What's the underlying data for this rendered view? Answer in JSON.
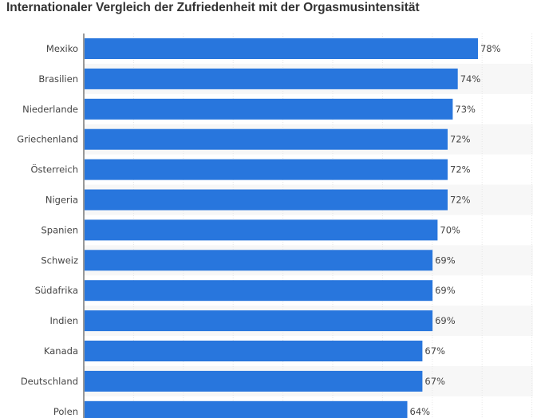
{
  "chart_data": {
    "type": "bar",
    "orientation": "horizontal",
    "title": "Internationaler Vergleich der Zufriedenheit mit der Orgasmusintensität",
    "categories": [
      "Mexiko",
      "Brasilien",
      "Niederlande",
      "Griechenland",
      "Österreich",
      "Nigeria",
      "Spanien",
      "Schweiz",
      "Südafrika",
      "Indien",
      "Kanada",
      "Deutschland",
      "Polen"
    ],
    "values": [
      78,
      74,
      73,
      72,
      72,
      72,
      70,
      69,
      69,
      69,
      67,
      67,
      64
    ],
    "value_labels": [
      "78%",
      "74%",
      "73%",
      "72%",
      "72%",
      "72%",
      "70%",
      "69%",
      "69%",
      "69%",
      "67%",
      "67%",
      "64%"
    ],
    "unit": "%",
    "xlim": [
      0,
      90
    ],
    "xlabel": "",
    "ylabel": "",
    "grid": true,
    "bar_color": "#2876dd"
  }
}
